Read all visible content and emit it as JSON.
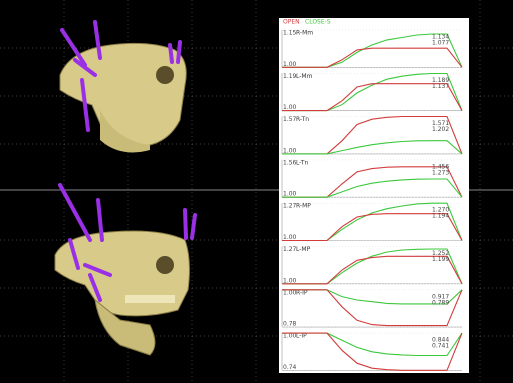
{
  "legend": [
    "OPEN",
    "CLOSE-S"
  ],
  "chart_data": [
    {
      "type": "line",
      "title": "R-Mm",
      "x": [
        0,
        1,
        2,
        3,
        4,
        5,
        6,
        7,
        8,
        9,
        10,
        11,
        12
      ],
      "xlim": [
        0,
        12
      ],
      "ylim": [
        1.0,
        1.15
      ],
      "yticks": [
        {
          "value": 1.0,
          "label": "1.00"
        },
        1.15
      ],
      "annotations": [
        "1.134",
        "1.077"
      ],
      "series": [
        {
          "color": "#3cc83c",
          "values": [
            1,
            1,
            1,
            1,
            1.02,
            1.06,
            1.09,
            1.11,
            1.12,
            1.13,
            1.134,
            1.134,
            1.0
          ]
        },
        {
          "color": "#d23c3c",
          "values": [
            1,
            1,
            1,
            1,
            1.03,
            1.07,
            1.077,
            1.077,
            1.077,
            1.077,
            1.077,
            1.077,
            1.0
          ]
        }
      ]
    },
    {
      "type": "line",
      "title": "L-Mm",
      "x": [
        0,
        1,
        2,
        3,
        4,
        5,
        6,
        7,
        8,
        9,
        10,
        11,
        12
      ],
      "xlim": [
        0,
        12
      ],
      "ylim": [
        1.0,
        1.19
      ],
      "yticks": [
        {
          "value": 1.0,
          "label": "1.00"
        },
        1.19
      ],
      "annotations": [
        "1.189",
        "1.137"
      ],
      "series": [
        {
          "color": "#3cc83c",
          "values": [
            1,
            1,
            1,
            1,
            1.03,
            1.09,
            1.13,
            1.16,
            1.175,
            1.185,
            1.189,
            1.189,
            1.0
          ]
        },
        {
          "color": "#d23c3c",
          "values": [
            1,
            1,
            1,
            1,
            1.05,
            1.12,
            1.137,
            1.137,
            1.137,
            1.137,
            1.137,
            1.137,
            1.0
          ]
        }
      ]
    },
    {
      "type": "line",
      "title": "R-Tn",
      "x": [
        0,
        1,
        2,
        3,
        4,
        5,
        6,
        7,
        8,
        9,
        10,
        11,
        12
      ],
      "xlim": [
        0,
        12
      ],
      "ylim": [
        1.0,
        1.57
      ],
      "yticks": [
        {
          "value": 1.0,
          "label": "1.00"
        },
        1.57
      ],
      "annotations": [
        "1.571",
        "1.202"
      ],
      "series": [
        {
          "color": "#d23c3c",
          "values": [
            1,
            1,
            1,
            1,
            1.2,
            1.45,
            1.53,
            1.56,
            1.571,
            1.571,
            1.571,
            1.571,
            1.0
          ]
        },
        {
          "color": "#3cc83c",
          "values": [
            1,
            1,
            1,
            1,
            1.05,
            1.1,
            1.14,
            1.17,
            1.19,
            1.2,
            1.202,
            1.202,
            1.0
          ]
        }
      ]
    },
    {
      "type": "line",
      "title": "L-Tn",
      "x": [
        0,
        1,
        2,
        3,
        4,
        5,
        6,
        7,
        8,
        9,
        10,
        11,
        12
      ],
      "xlim": [
        0,
        12
      ],
      "ylim": [
        1.0,
        1.56
      ],
      "yticks": [
        {
          "value": 1.0,
          "label": "1.00"
        },
        1.56
      ],
      "annotations": [
        "1.456",
        "1.273"
      ],
      "series": [
        {
          "color": "#d23c3c",
          "values": [
            1,
            1,
            1,
            1,
            1.2,
            1.38,
            1.43,
            1.45,
            1.456,
            1.456,
            1.456,
            1.456,
            1.0
          ]
        },
        {
          "color": "#3cc83c",
          "values": [
            1,
            1,
            1,
            1,
            1.08,
            1.16,
            1.21,
            1.24,
            1.26,
            1.27,
            1.273,
            1.273,
            1.0
          ]
        }
      ]
    },
    {
      "type": "line",
      "title": "R-MP",
      "x": [
        0,
        1,
        2,
        3,
        4,
        5,
        6,
        7,
        8,
        9,
        10,
        11,
        12
      ],
      "xlim": [
        0,
        12
      ],
      "ylim": [
        1.0,
        1.27
      ],
      "yticks": [
        {
          "value": 1.0,
          "label": "1.00"
        },
        1.27
      ],
      "annotations": [
        "1.270",
        "1.194"
      ],
      "series": [
        {
          "color": "#3cc83c",
          "values": [
            1,
            1,
            1,
            1,
            1.08,
            1.15,
            1.2,
            1.23,
            1.25,
            1.265,
            1.27,
            1.27,
            1.0
          ]
        },
        {
          "color": "#d23c3c",
          "values": [
            1,
            1,
            1,
            1,
            1.1,
            1.17,
            1.19,
            1.194,
            1.194,
            1.194,
            1.194,
            1.194,
            1.0
          ]
        }
      ]
    },
    {
      "type": "line",
      "title": "L-MP",
      "x": [
        0,
        1,
        2,
        3,
        4,
        5,
        6,
        7,
        8,
        9,
        10,
        11,
        12
      ],
      "xlim": [
        0,
        12
      ],
      "ylim": [
        1.0,
        1.27
      ],
      "yticks": [
        {
          "value": 1.0,
          "label": "1.00"
        },
        1.27
      ],
      "annotations": [
        "1.252",
        "1.199"
      ],
      "series": [
        {
          "color": "#3cc83c",
          "values": [
            1,
            1,
            1,
            1,
            1.08,
            1.15,
            1.2,
            1.23,
            1.245,
            1.25,
            1.252,
            1.252,
            1.0
          ]
        },
        {
          "color": "#d23c3c",
          "values": [
            1,
            1,
            1,
            1,
            1.1,
            1.17,
            1.19,
            1.199,
            1.199,
            1.199,
            1.199,
            1.199,
            1.0
          ]
        }
      ]
    },
    {
      "type": "line",
      "title": "R-IP",
      "x": [
        0,
        1,
        2,
        3,
        4,
        5,
        6,
        7,
        8,
        9,
        10,
        11,
        12
      ],
      "xlim": [
        0,
        12
      ],
      "ylim": [
        0.78,
        1.0
      ],
      "yticks": [
        {
          "value": 0.78,
          "label": "0.78"
        },
        {
          "value": 1.0,
          "label": "1.00"
        }
      ],
      "annotations": [
        "0.917",
        "0.789"
      ],
      "series": [
        {
          "color": "#3cc83c",
          "values": [
            1,
            1,
            1,
            1,
            0.96,
            0.94,
            0.93,
            0.92,
            0.917,
            0.917,
            0.917,
            0.917,
            1.0
          ]
        },
        {
          "color": "#d23c3c",
          "values": [
            1,
            1,
            1,
            1,
            0.9,
            0.82,
            0.795,
            0.789,
            0.789,
            0.789,
            0.789,
            0.789,
            1.0
          ]
        }
      ]
    },
    {
      "type": "line",
      "title": "L-IP",
      "x": [
        0,
        1,
        2,
        3,
        4,
        5,
        6,
        7,
        8,
        9,
        10,
        11,
        12
      ],
      "xlim": [
        0,
        12
      ],
      "ylim": [
        0.74,
        1.0
      ],
      "yticks": [
        {
          "value": 0.74,
          "label": "0.74"
        },
        {
          "value": 1.0,
          "label": "1.00"
        }
      ],
      "annotations": [
        "0.844",
        "0.741"
      ],
      "series": [
        {
          "color": "#3cc83c",
          "values": [
            1,
            1,
            1,
            1,
            0.95,
            0.9,
            0.87,
            0.855,
            0.848,
            0.844,
            0.844,
            0.844,
            1.0
          ]
        },
        {
          "color": "#d23c3c",
          "values": [
            1,
            1,
            1,
            1,
            0.88,
            0.79,
            0.755,
            0.745,
            0.741,
            0.741,
            0.741,
            0.741,
            1.0
          ]
        }
      ]
    }
  ]
}
